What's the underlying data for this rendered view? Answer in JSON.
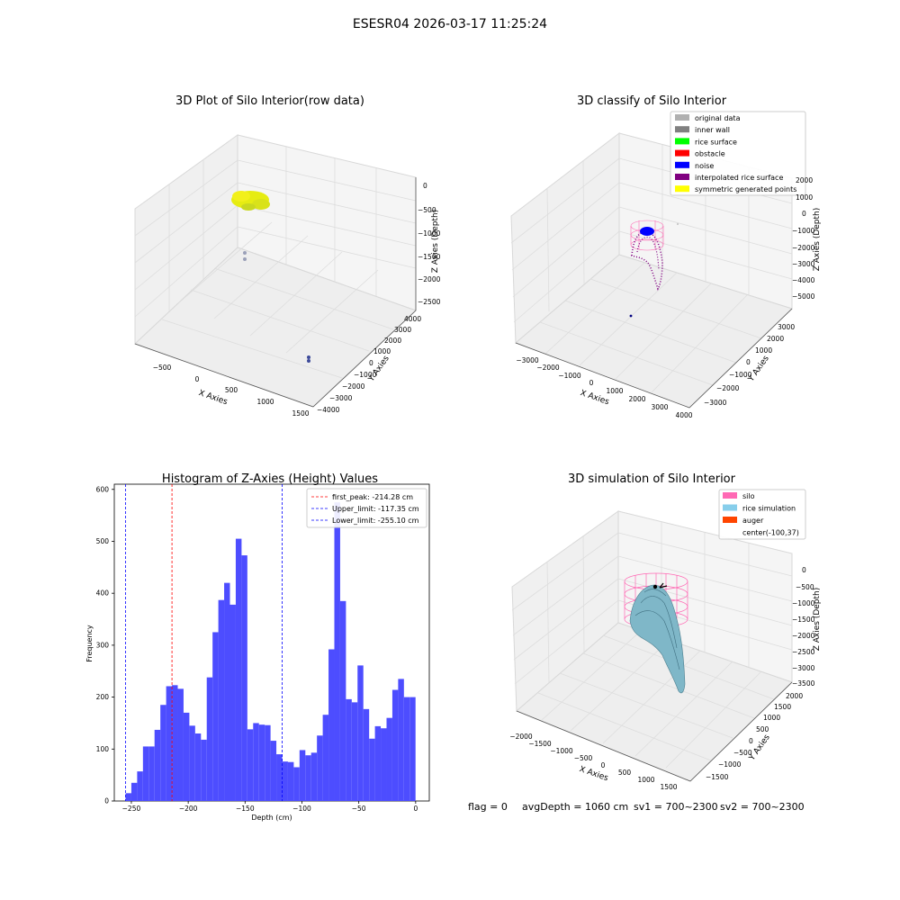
{
  "suptitle": "ESESR04 2026-03-17 11:25:24",
  "colors": {
    "hist_bar": "#4d4dff",
    "first_peak_line": "#ff0000",
    "limit_line": "#0000ff",
    "rice_yellow": "#e8ee10",
    "silo_pink": "#ff69b4",
    "rice_sim": "#87c9dc",
    "auger": "#ff4500",
    "noise_blue": "#0000ff",
    "interp_purple": "#800080"
  },
  "panels": {
    "raw": {
      "title": "3D Plot of Silo Interior(row data)",
      "xlabel": "X Axies",
      "ylabel": "Y Axies",
      "zlabel": "Z Axies (Depth)",
      "xticks": [
        "−500",
        "0",
        "500",
        "1000",
        "1500"
      ],
      "yticks": [
        "−4000",
        "−3000",
        "−2000",
        "−1000",
        "0",
        "1000",
        "2000",
        "3000",
        "4000"
      ],
      "zticks": [
        "0",
        "−500",
        "−1000",
        "−1500",
        "−2000",
        "−2500"
      ]
    },
    "classify": {
      "title": "3D classify of Silo Interior",
      "xlabel": "X Axies",
      "ylabel": "Y Axies",
      "zlabel": "Z Axies (Depth)",
      "xticks": [
        "−3000",
        "−2000",
        "−1000",
        "0",
        "1000",
        "2000",
        "3000",
        "4000"
      ],
      "yticks": [
        "−3000",
        "−2000",
        "−1000",
        "0",
        "1000",
        "2000",
        "3000"
      ],
      "zticks": [
        "2000",
        "1000",
        "0",
        "−1000",
        "−2000",
        "−3000",
        "−4000",
        "−5000"
      ],
      "legend": [
        {
          "label": "original data",
          "color": "#b0b0b0"
        },
        {
          "label": "inner wall",
          "color": "#808080"
        },
        {
          "label": "rice surface",
          "color": "#00ff00"
        },
        {
          "label": "obstacle",
          "color": "#ff0000"
        },
        {
          "label": "noise",
          "color": "#0000ff"
        },
        {
          "label": "interpolated rice surface",
          "color": "#800080"
        },
        {
          "label": "symmetric generated points",
          "color": "#ffff00"
        }
      ]
    },
    "simulation": {
      "title": "3D simulation of Silo Interior",
      "xlabel": "X Axies",
      "ylabel": "Y Axies",
      "zlabel": "Z Axies (Depth)",
      "xticks": [
        "−2000",
        "−1500",
        "−1000",
        "−500",
        "0",
        "500",
        "1000",
        "1500"
      ],
      "yticks": [
        "−1500",
        "−1000",
        "−500",
        "0",
        "500",
        "1000",
        "1500",
        "2000"
      ],
      "zticks": [
        "0",
        "−500",
        "−1000",
        "−1500",
        "−2000",
        "−2500",
        "−3000",
        "−3500"
      ],
      "legend": [
        {
          "label": "silo",
          "color": "#ff69b4"
        },
        {
          "label": "rice simulation",
          "color": "#87ceeb"
        },
        {
          "label": "auger",
          "color": "#ff4500"
        },
        {
          "label": "center(-100,37)",
          "color": ""
        }
      ]
    }
  },
  "status": {
    "flag": "flag = 0",
    "avg_depth": "avgDepth = 1060 cm",
    "sv1": "sv1 = 700~2300",
    "sv2": "sv2 = 700~2300"
  },
  "chart_data": {
    "type": "bar",
    "title": "Histogram of Z-Axies (Height) Values",
    "xlabel": "Depth (cm)",
    "ylabel": "Frequency",
    "xlim": [
      -265,
      12
    ],
    "ylim": [
      0,
      610
    ],
    "xticks": [
      -250,
      -200,
      -150,
      -100,
      -50,
      0
    ],
    "yticks": [
      0,
      100,
      200,
      300,
      400,
      500,
      600
    ],
    "bin_start": -255.1,
    "bin_width": 5.1,
    "values": [
      15,
      35,
      57,
      105,
      105,
      137,
      185,
      221,
      223,
      216,
      170,
      145,
      130,
      118,
      238,
      325,
      387,
      420,
      378,
      505,
      473,
      138,
      150,
      147,
      146,
      116,
      90,
      76,
      75,
      65,
      98,
      88,
      93,
      126,
      166,
      292,
      575,
      385,
      196,
      190,
      261,
      177,
      120,
      144,
      140,
      160,
      214,
      235,
      200,
      200
    ],
    "vlines": [
      {
        "label": "first_peak: -214.28 cm",
        "x": -214.28,
        "color": "#ff0000"
      },
      {
        "label": "Upper_limit: -117.35 cm",
        "x": -117.35,
        "color": "#0000ff"
      },
      {
        "label": "Lower_limit: -255.10 cm",
        "x": -255.1,
        "color": "#0000ff"
      }
    ]
  }
}
